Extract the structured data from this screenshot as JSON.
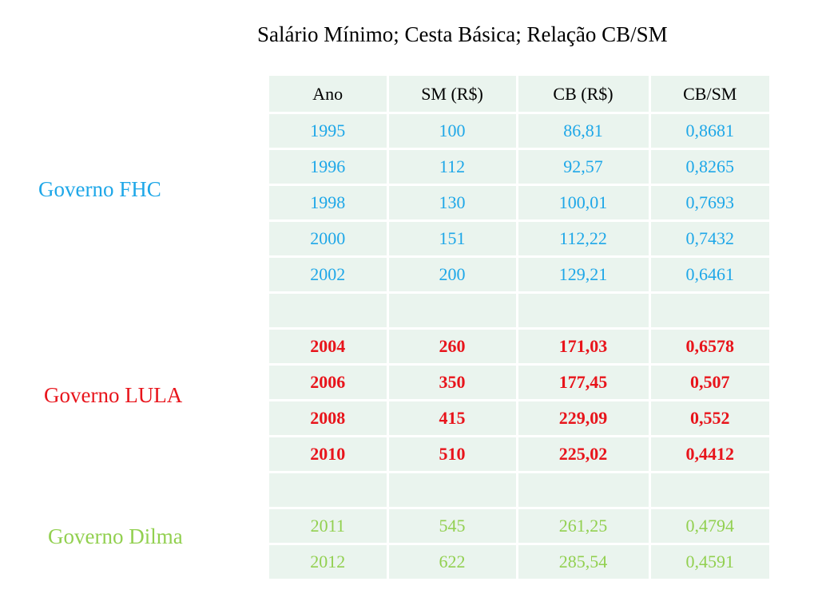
{
  "title": "Salário Mínimo; Cesta Básica; Relação CB/SM",
  "governments": {
    "fhc": "Governo FHC",
    "lula": "Governo LULA",
    "dilma": "Governo Dilma"
  },
  "colors": {
    "fhc": "#1ea7e8",
    "lula": "#e8141b",
    "dilma": "#92d050",
    "table_bg": "#eaf4ee"
  },
  "table": {
    "headers": [
      "Ano",
      "SM (R$)",
      "CB (R$)",
      "CB/SM"
    ],
    "fhc_rows": [
      [
        "1995",
        "100",
        "86,81",
        "0,8681"
      ],
      [
        "1996",
        "112",
        "92,57",
        "0,8265"
      ],
      [
        "1998",
        "130",
        "100,01",
        "0,7693"
      ],
      [
        "2000",
        "151",
        "112,22",
        "0,7432"
      ],
      [
        "2002",
        "200",
        "129,21",
        "0,6461"
      ]
    ],
    "lula_rows": [
      [
        "2004",
        "260",
        "171,03",
        "0,6578"
      ],
      [
        "2006",
        "350",
        "177,45",
        "0,507"
      ],
      [
        "2008",
        "415",
        "229,09",
        "0,552"
      ],
      [
        "2010",
        "510",
        "225,02",
        "0,4412"
      ]
    ],
    "dilma_rows": [
      [
        "2011",
        "545",
        "261,25",
        "0,4794"
      ],
      [
        "2012",
        "622",
        "285,54",
        "0,4591"
      ]
    ]
  }
}
